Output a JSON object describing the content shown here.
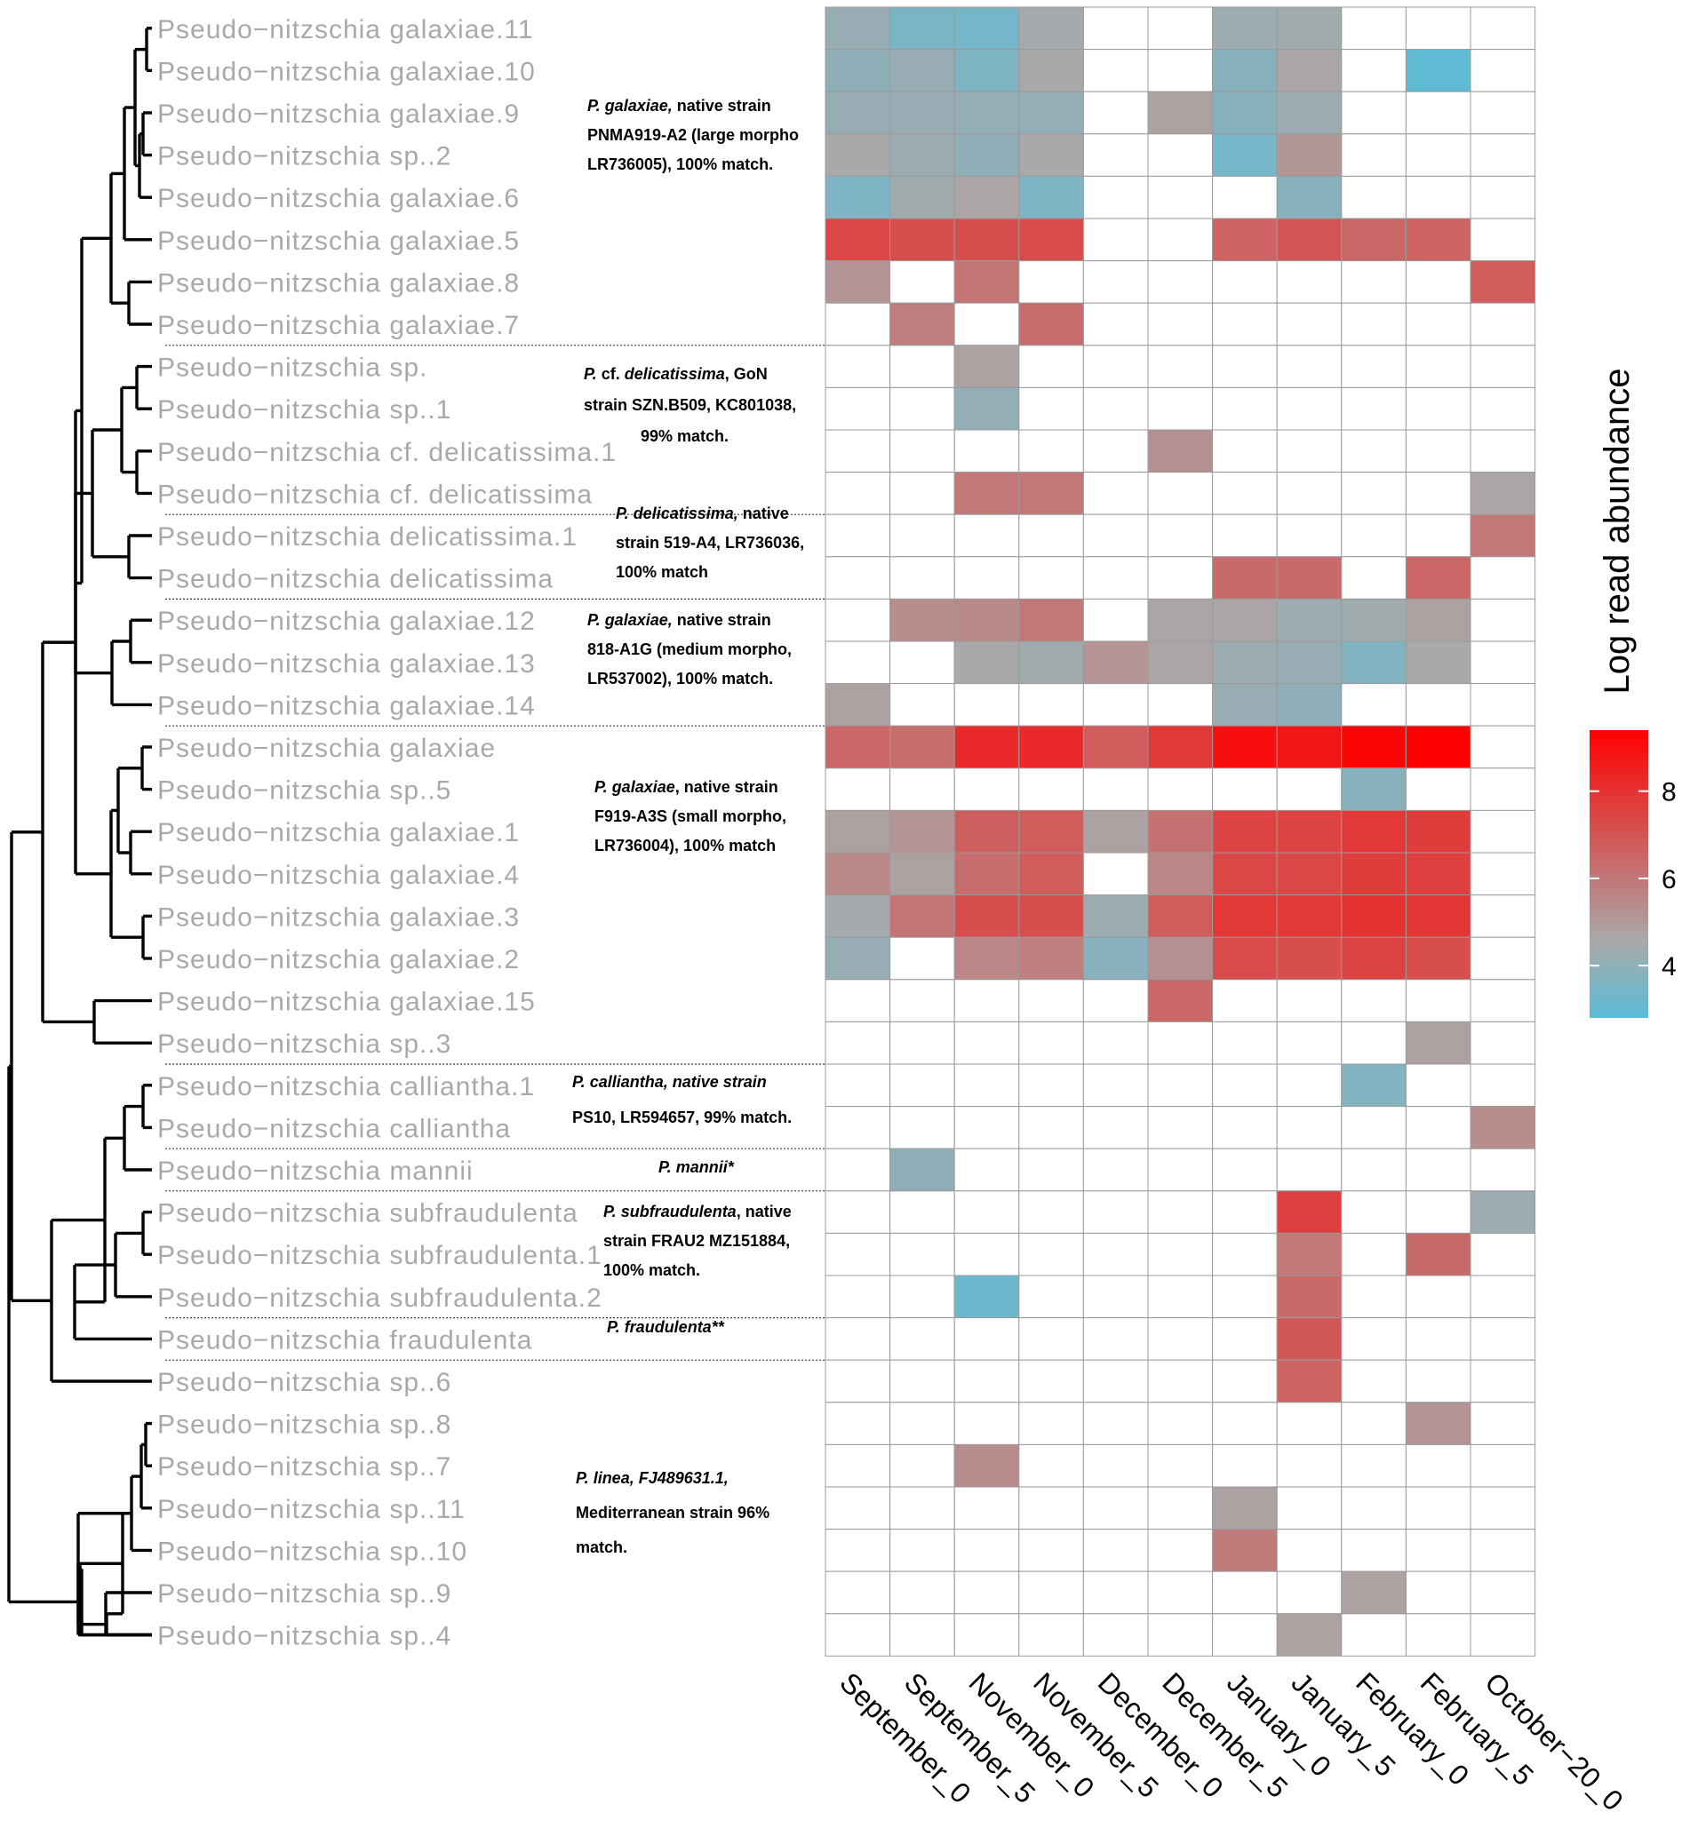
{
  "chart_data": {
    "type": "heatmap",
    "title": "",
    "colorbar": {
      "title": "Log read abundance",
      "ticks": [
        4,
        6,
        8
      ],
      "range": [
        2.8,
        9.4
      ],
      "colors": {
        "low": "#5bbcd7",
        "mid": "#a9a9a9",
        "high": "#ff0000"
      }
    },
    "columns": [
      "September_0",
      "September_5",
      "November_0",
      "November_5",
      "December_0",
      "December_5",
      "January_0",
      "January_5",
      "February_0",
      "February_5",
      "October−20_0"
    ],
    "rows": [
      {
        "label": "Pseudo−nitzschia galaxiae.11",
        "values": [
          4.2,
          3.5,
          3.4,
          4.5,
          null,
          null,
          4.3,
          4.4,
          null,
          null,
          null
        ]
      },
      {
        "label": "Pseudo−nitzschia galaxiae.10",
        "values": [
          4.0,
          4.2,
          3.6,
          4.6,
          null,
          null,
          3.8,
          4.7,
          null,
          2.9,
          null
        ]
      },
      {
        "label": "Pseudo−nitzschia galaxiae.9",
        "values": [
          4.2,
          4.2,
          4.1,
          4.1,
          null,
          4.8,
          3.8,
          4.3,
          null,
          null,
          null
        ]
      },
      {
        "label": "Pseudo−nitzschia sp..2",
        "values": [
          4.6,
          4.3,
          4.0,
          4.6,
          null,
          null,
          3.4,
          5.1,
          null,
          null,
          null
        ]
      },
      {
        "label": "Pseudo−nitzschia galaxiae.6",
        "values": [
          3.6,
          4.4,
          4.7,
          3.6,
          null,
          null,
          null,
          3.8,
          null,
          null,
          null
        ]
      },
      {
        "label": "Pseudo−nitzschia galaxiae.5",
        "values": [
          7.4,
          7.2,
          7.2,
          7.3,
          null,
          null,
          6.6,
          7.0,
          6.5,
          6.6,
          null
        ]
      },
      {
        "label": "Pseudo−nitzschia galaxiae.8",
        "values": [
          5.2,
          null,
          6.1,
          null,
          null,
          null,
          null,
          null,
          null,
          null,
          6.8
        ]
      },
      {
        "label": "Pseudo−nitzschia galaxiae.7",
        "values": [
          null,
          5.8,
          null,
          6.3,
          null,
          null,
          null,
          null,
          null,
          null,
          null
        ]
      },
      {
        "label": "Pseudo−nitzschia sp.",
        "values": [
          null,
          null,
          4.8,
          null,
          null,
          null,
          null,
          null,
          null,
          null,
          null
        ]
      },
      {
        "label": "Pseudo−nitzschia sp..1",
        "values": [
          null,
          null,
          4.1,
          null,
          null,
          null,
          null,
          null,
          null,
          null,
          null
        ]
      },
      {
        "label": "Pseudo−nitzschia cf. delicatissima.1",
        "values": [
          null,
          null,
          null,
          null,
          null,
          5.3,
          null,
          null,
          null,
          null,
          null
        ]
      },
      {
        "label": "Pseudo−nitzschia cf. delicatissima",
        "values": [
          null,
          null,
          6.0,
          6.0,
          null,
          null,
          null,
          null,
          null,
          null,
          4.7
        ]
      },
      {
        "label": "Pseudo−nitzschia delicatissima.1",
        "values": [
          null,
          null,
          null,
          null,
          null,
          null,
          null,
          null,
          null,
          null,
          6.0
        ]
      },
      {
        "label": "Pseudo−nitzschia delicatissima",
        "values": [
          null,
          null,
          null,
          null,
          null,
          null,
          6.4,
          6.4,
          null,
          6.5,
          null
        ]
      },
      {
        "label": "Pseudo−nitzschia galaxiae.12",
        "values": [
          null,
          5.4,
          5.5,
          6.0,
          null,
          4.7,
          4.7,
          4.3,
          4.4,
          4.8,
          null
        ]
      },
      {
        "label": "Pseudo−nitzschia galaxiae.13",
        "values": [
          null,
          null,
          4.6,
          4.4,
          5.2,
          4.7,
          4.3,
          4.2,
          3.7,
          4.6,
          null
        ]
      },
      {
        "label": "Pseudo−nitzschia galaxiae.14",
        "values": [
          4.8,
          null,
          null,
          null,
          null,
          null,
          4.2,
          4.0,
          null,
          null,
          null
        ]
      },
      {
        "label": "Pseudo−nitzschia galaxiae",
        "values": [
          6.5,
          6.3,
          8.2,
          8.2,
          6.8,
          7.8,
          9.0,
          8.8,
          9.3,
          9.4,
          null
        ]
      },
      {
        "label": "Pseudo−nitzschia sp..5",
        "values": [
          null,
          null,
          null,
          null,
          null,
          null,
          null,
          null,
          3.8,
          null,
          null
        ]
      },
      {
        "label": "Pseudo−nitzschia galaxiae.1",
        "values": [
          4.8,
          5.2,
          6.7,
          6.8,
          4.8,
          6.2,
          7.5,
          7.5,
          7.8,
          7.7,
          null
        ]
      },
      {
        "label": "Pseudo−nitzschia galaxiae.4",
        "values": [
          5.5,
          4.8,
          6.3,
          6.8,
          null,
          5.6,
          7.4,
          7.4,
          7.7,
          7.6,
          null
        ]
      },
      {
        "label": "Pseudo−nitzschia galaxiae.3",
        "values": [
          4.5,
          6.1,
          7.2,
          7.2,
          4.3,
          6.8,
          7.8,
          7.8,
          8.0,
          7.9,
          null
        ]
      },
      {
        "label": "Pseudo−nitzschia galaxiae.2",
        "values": [
          4.2,
          null,
          5.6,
          5.8,
          3.8,
          5.3,
          7.3,
          7.2,
          7.5,
          7.2,
          null
        ]
      },
      {
        "label": "Pseudo−nitzschia galaxiae.15",
        "values": [
          null,
          null,
          null,
          null,
          null,
          6.5,
          null,
          null,
          null,
          null,
          null
        ]
      },
      {
        "label": "Pseudo−nitzschia sp..3",
        "values": [
          null,
          null,
          null,
          null,
          null,
          null,
          null,
          null,
          null,
          4.8,
          null
        ]
      },
      {
        "label": "Pseudo−nitzschia calliantha.1",
        "values": [
          null,
          null,
          null,
          null,
          null,
          null,
          null,
          null,
          3.7,
          null,
          null
        ]
      },
      {
        "label": "Pseudo−nitzschia calliantha",
        "values": [
          null,
          null,
          null,
          null,
          null,
          null,
          null,
          null,
          null,
          null,
          5.4
        ]
      },
      {
        "label": "Pseudo−nitzschia mannii",
        "values": [
          null,
          4.0,
          null,
          null,
          null,
          null,
          null,
          null,
          null,
          null,
          null
        ]
      },
      {
        "label": "Pseudo−nitzschia subfraudulenta",
        "values": [
          null,
          null,
          null,
          null,
          null,
          null,
          null,
          7.6,
          null,
          null,
          4.3
        ]
      },
      {
        "label": "Pseudo−nitzschia subfraudulenta.1",
        "values": [
          null,
          null,
          null,
          null,
          null,
          null,
          null,
          6.0,
          null,
          6.4,
          null
        ]
      },
      {
        "label": "Pseudo−nitzschia subfraudulenta.2",
        "values": [
          null,
          null,
          3.2,
          null,
          null,
          null,
          null,
          6.4,
          null,
          null,
          null
        ]
      },
      {
        "label": "Pseudo−nitzschia fraudulenta",
        "values": [
          null,
          null,
          null,
          null,
          null,
          null,
          null,
          6.9,
          null,
          null,
          null
        ]
      },
      {
        "label": "Pseudo−nitzschia sp..6",
        "values": [
          null,
          null,
          null,
          null,
          null,
          null,
          null,
          6.6,
          null,
          null,
          null
        ]
      },
      {
        "label": "Pseudo−nitzschia sp..8",
        "values": [
          null,
          null,
          null,
          null,
          null,
          null,
          null,
          null,
          null,
          5.2,
          null
        ]
      },
      {
        "label": "Pseudo−nitzschia sp..7",
        "values": [
          null,
          null,
          5.4,
          null,
          null,
          null,
          null,
          null,
          null,
          null,
          null
        ]
      },
      {
        "label": "Pseudo−nitzschia sp..11",
        "values": [
          null,
          null,
          null,
          null,
          null,
          null,
          4.8,
          null,
          null,
          null,
          null
        ]
      },
      {
        "label": "Pseudo−nitzschia sp..10",
        "values": [
          null,
          null,
          null,
          null,
          null,
          null,
          5.9,
          null,
          null,
          null,
          null
        ]
      },
      {
        "label": "Pseudo−nitzschia sp..9",
        "values": [
          null,
          null,
          null,
          null,
          null,
          null,
          null,
          null,
          4.8,
          null,
          null
        ]
      },
      {
        "label": "Pseudo−nitzschia sp..4",
        "values": [
          null,
          null,
          null,
          null,
          null,
          null,
          null,
          4.8,
          null,
          null,
          null
        ]
      }
    ],
    "group_separators_after_row": [
      7,
      11,
      13,
      16,
      24,
      26,
      27,
      30,
      31
    ],
    "annotations": [
      {
        "lines": [
          [
            {
              "t": "P. galaxiae,",
              "i": true
            },
            {
              "t": " native strain",
              "i": false
            }
          ],
          [
            {
              "t": "PNMA919-A2 (large morpho",
              "i": false
            }
          ],
          [
            {
              "t": "LR736005), 100% match.",
              "i": false
            }
          ]
        ]
      },
      {
        "lines": [
          [
            {
              "t": "P.",
              "i": true
            },
            {
              "t": " cf. ",
              "i": false
            },
            {
              "t": "delicatissima",
              "i": true
            },
            {
              "t": ", GoN",
              "i": false
            }
          ],
          [
            {
              "t": "strain SZN.B509, KC801038,",
              "i": false
            }
          ],
          [
            {
              "t": "99% match.",
              "i": false
            }
          ]
        ]
      },
      {
        "lines": [
          [
            {
              "t": "P. delicatissima,",
              "i": true
            },
            {
              "t": " native",
              "i": false
            }
          ],
          [
            {
              "t": "strain 519-A4, LR736036,",
              "i": false
            }
          ],
          [
            {
              "t": "100% match",
              "i": false
            }
          ]
        ]
      },
      {
        "lines": [
          [
            {
              "t": "P. galaxiae,",
              "i": true
            },
            {
              "t": " native strain",
              "i": false
            }
          ],
          [
            {
              "t": "818-A1G (medium morpho,",
              "i": false
            }
          ],
          [
            {
              "t": "LR537002), 100% match.",
              "i": false
            }
          ]
        ]
      },
      {
        "lines": [
          [
            {
              "t": "P. galaxiae",
              "i": true
            },
            {
              "t": ", native strain",
              "i": false
            }
          ],
          [
            {
              "t": "F919-A3S (small morpho,",
              "i": false
            }
          ],
          [
            {
              "t": "LR736004), 100% match",
              "i": false
            }
          ]
        ]
      },
      {
        "lines": [
          [
            {
              "t": "P. calliantha, native strain",
              "i": true
            }
          ],
          [
            {
              "t": "PS10, LR594657, 99% match.",
              "i": false
            }
          ]
        ]
      },
      {
        "lines": [
          [
            {
              "t": "P. mannii*",
              "i": true
            }
          ]
        ]
      },
      {
        "lines": [
          [
            {
              "t": "P. subfraudulenta",
              "i": true
            },
            {
              "t": ", native",
              "i": false
            }
          ],
          [
            {
              "t": "strain FRAU2 MZ151884,",
              "i": false
            }
          ],
          [
            {
              "t": "100% match.",
              "i": false
            }
          ]
        ]
      },
      {
        "lines": [
          [
            {
              "t": "P. fraudulenta**",
              "i": true
            }
          ]
        ]
      },
      {
        "lines": [
          [
            {
              "t": "P. linea, FJ489631.1,",
              "i": true
            }
          ],
          [
            {
              "t": "Mediterranean strain 96%",
              "i": false
            }
          ],
          [
            {
              "t": "match.",
              "i": false
            }
          ]
        ]
      }
    ]
  }
}
